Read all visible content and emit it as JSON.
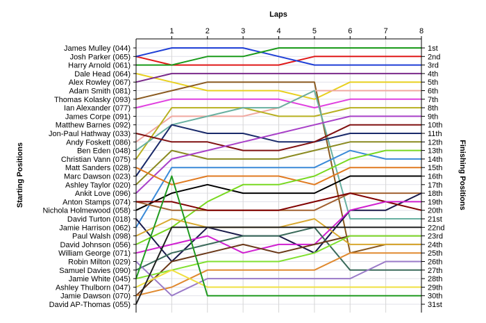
{
  "chart_data": {
    "type": "line",
    "title": "",
    "xlabel": "Laps",
    "ylabel_left": "Starting Positions",
    "ylabel_right": "Finishing Positions",
    "x": [
      0,
      1,
      2,
      3,
      4,
      5,
      6,
      7,
      8
    ],
    "x_tick_labels": [
      "1",
      "2",
      "3",
      "4",
      "5",
      "6",
      "7",
      "8"
    ],
    "xlim": [
      0,
      8
    ],
    "ylim": [
      1,
      31
    ],
    "y_inverted": true,
    "grid": true,
    "starting_labels": [
      "James Mulley (044)",
      "Josh Parker (065)",
      "Harry Arnold (061)",
      "Dale Head (064)",
      "Alex Rowley (067)",
      "Adam Smith (081)",
      "Thomas Kolasky (093)",
      "Ian Alexander (077)",
      "James Corpe (091)",
      "Matthew Barnes (092)",
      "Jon-Paul Hathway (033)",
      "Andy Foskett (086)",
      "Ben Eden (048)",
      "Christian Vann (075)",
      "Matt Sanders (028)",
      "Marc Dawson (023)",
      "Ashley Taylor (020)",
      "Ankit Love (096)",
      "Anton Stamps (074)",
      "Nichola Holmewood (058)",
      "David Turton (018)",
      "Jamie Harrison (062)",
      "Paul Walsh (098)",
      "David Johnson (056)",
      "William George (071)",
      "Robin Milton (029)",
      "Samuel Davies (090)",
      "Jamie White (045)",
      "Ashley Thulborn (047)",
      "Jamie Dawson (070)",
      "David AP-Thomas (055)"
    ],
    "finishing_labels": [
      "1st",
      "2nd",
      "3rd",
      "4th",
      "5th",
      "6th",
      "7th",
      "8th",
      "9th",
      "10th",
      "11th",
      "12th",
      "13th",
      "14th",
      "15th",
      "16th",
      "17th",
      "18th",
      "19th",
      "20th",
      "21st",
      "22nd",
      "23rd",
      "24th",
      "25th",
      "26th",
      "27th",
      "28th",
      "29th",
      "30th",
      "31st"
    ],
    "series": [
      {
        "color": "#e01818",
        "values": [
          2,
          3,
          3,
          3,
          3,
          2,
          2,
          2,
          2
        ]
      },
      {
        "color": "#1f3fd6",
        "values": [
          2,
          1,
          1,
          1,
          2,
          3,
          3,
          3,
          3
        ]
      },
      {
        "color": "#1a9a1a",
        "values": [
          3,
          3,
          2,
          2,
          1,
          1,
          1,
          1,
          1
        ]
      },
      {
        "color": "#e8d020",
        "values": [
          4,
          5,
          6,
          6,
          6,
          7,
          5,
          5,
          5
        ]
      },
      {
        "color": "#7a2a8a",
        "values": [
          5,
          4,
          4,
          4,
          4,
          4,
          4,
          4,
          4
        ]
      },
      {
        "color": "#8a5a20",
        "values": [
          7,
          6,
          5,
          5,
          5,
          5,
          25,
          24,
          24
        ]
      },
      {
        "color": "#e040e0",
        "values": [
          8,
          7,
          7,
          7,
          7,
          8,
          7,
          7,
          7
        ]
      },
      {
        "color": "#f0a8a0",
        "values": [
          12,
          9,
          9,
          9,
          8,
          6,
          6,
          6,
          6
        ]
      },
      {
        "color": "#b8b020",
        "values": [
          14,
          8,
          8,
          8,
          9,
          9,
          8,
          8,
          8
        ]
      },
      {
        "color": "#68b0a0",
        "values": [
          13,
          10,
          9,
          8,
          8,
          6,
          21,
          21,
          21
        ]
      },
      {
        "color": "#1a2a6a",
        "values": [
          16,
          10,
          11,
          11,
          12,
          12,
          11,
          11,
          11
        ]
      },
      {
        "color": "#801010",
        "values": [
          11,
          12,
          12,
          13,
          13,
          12,
          10,
          10,
          10
        ]
      },
      {
        "color": "#8a8a20",
        "values": [
          17,
          13,
          14,
          14,
          14,
          13,
          12,
          12,
          12
        ]
      },
      {
        "color": "#a840c8",
        "values": [
          18,
          14,
          13,
          12,
          11,
          10,
          9,
          9,
          9
        ]
      },
      {
        "color": "#3a8ad8",
        "values": [
          22,
          15,
          15,
          15,
          15,
          15,
          13,
          14,
          14
        ]
      },
      {
        "color": "#e07a20",
        "values": [
          15,
          17,
          16,
          16,
          16,
          17,
          15,
          15,
          15
        ]
      },
      {
        "color": "#000000",
        "values": [
          20,
          18,
          17,
          18,
          18,
          18,
          16,
          16,
          16
        ]
      },
      {
        "color": "#78d820",
        "values": [
          24,
          22,
          19,
          17,
          17,
          16,
          14,
          13,
          13
        ]
      },
      {
        "color": "#a06030",
        "values": [
          19,
          20,
          20,
          20,
          20,
          20,
          18,
          18,
          18
        ]
      },
      {
        "color": "#1a1a4a",
        "values": [
          21,
          26,
          22,
          23,
          23,
          25,
          20,
          20,
          18
        ]
      },
      {
        "color": "#800000",
        "values": [
          19,
          19,
          20,
          20,
          20,
          19,
          18,
          19,
          20
        ]
      },
      {
        "color": "#d8a830",
        "values": [
          23,
          21,
          22,
          22,
          22,
          21,
          24,
          24,
          24
        ]
      },
      {
        "color": "#d020d0",
        "values": [
          25,
          24,
          23,
          25,
          24,
          24,
          20,
          19,
          19
        ]
      },
      {
        "color": "#3a6a5a",
        "values": [
          27,
          25,
          24,
          23,
          23,
          22,
          27,
          27,
          27
        ]
      },
      {
        "color": "#6a3818",
        "values": [
          30,
          26,
          25,
          24,
          25,
          24,
          23,
          23,
          23
        ]
      },
      {
        "color": "#80e030",
        "values": [
          28,
          27,
          26,
          26,
          26,
          25,
          23,
          23,
          23
        ]
      },
      {
        "color": "#e08a30",
        "values": [
          30,
          29,
          27,
          27,
          27,
          27,
          25,
          25,
          25
        ]
      },
      {
        "color": "#9a7ac8",
        "values": [
          26,
          30,
          28,
          28,
          28,
          28,
          28,
          26,
          26
        ]
      },
      {
        "color": "#f0e040",
        "values": [
          29,
          27,
          29,
          29,
          29,
          29,
          29,
          29,
          29
        ]
      },
      {
        "color": "#209a20",
        "values": [
          28,
          16,
          30,
          30,
          30,
          30,
          30,
          30,
          30
        ]
      },
      {
        "color": "#202020",
        "values": [
          31,
          22,
          22,
          22,
          22,
          22,
          22,
          22,
          22
        ]
      }
    ]
  }
}
